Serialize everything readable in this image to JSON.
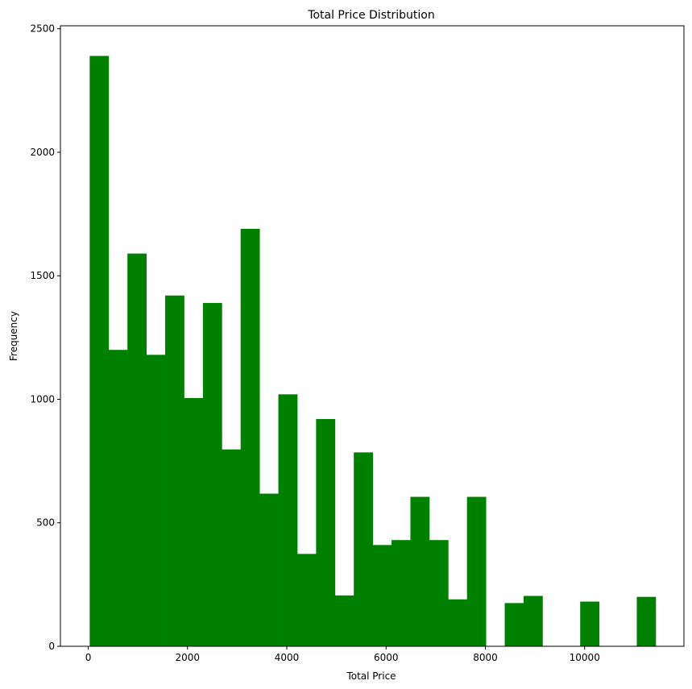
{
  "chart_data": {
    "type": "bar",
    "title": "Total Price Distribution",
    "xlabel": "Total Price",
    "ylabel": "Frequency",
    "xlim": [
      -560,
      12000
    ],
    "ylim": [
      0,
      2512
    ],
    "xticks": [
      0,
      2000,
      4000,
      6000,
      8000,
      10000
    ],
    "yticks": [
      0,
      500,
      1000,
      1500,
      2000,
      2500
    ],
    "bar_color": "#008000",
    "bins": [
      {
        "x0": 30,
        "x1": 410,
        "count": 2390
      },
      {
        "x0": 410,
        "x1": 790,
        "count": 1200
      },
      {
        "x0": 790,
        "x1": 1170,
        "count": 1590
      },
      {
        "x0": 1170,
        "x1": 1550,
        "count": 1180
      },
      {
        "x0": 1550,
        "x1": 1930,
        "count": 1420
      },
      {
        "x0": 1930,
        "x1": 2310,
        "count": 1005
      },
      {
        "x0": 2310,
        "x1": 2690,
        "count": 1390
      },
      {
        "x0": 2690,
        "x1": 3070,
        "count": 797
      },
      {
        "x0": 3070,
        "x1": 3450,
        "count": 1690
      },
      {
        "x0": 3450,
        "x1": 3830,
        "count": 618
      },
      {
        "x0": 3830,
        "x1": 4210,
        "count": 1020
      },
      {
        "x0": 4210,
        "x1": 4590,
        "count": 374
      },
      {
        "x0": 4590,
        "x1": 4970,
        "count": 920
      },
      {
        "x0": 4970,
        "x1": 5350,
        "count": 206
      },
      {
        "x0": 5350,
        "x1": 5730,
        "count": 785
      },
      {
        "x0": 5730,
        "x1": 6110,
        "count": 410
      },
      {
        "x0": 6110,
        "x1": 6490,
        "count": 430
      },
      {
        "x0": 6490,
        "x1": 6870,
        "count": 605
      },
      {
        "x0": 6870,
        "x1": 7250,
        "count": 430
      },
      {
        "x0": 7250,
        "x1": 7630,
        "count": 190
      },
      {
        "x0": 7630,
        "x1": 8010,
        "count": 605
      },
      {
        "x0": 8010,
        "x1": 8390,
        "count": 0
      },
      {
        "x0": 8390,
        "x1": 8770,
        "count": 175
      },
      {
        "x0": 8770,
        "x1": 9150,
        "count": 204
      },
      {
        "x0": 9150,
        "x1": 9530,
        "count": 0
      },
      {
        "x0": 9530,
        "x1": 9910,
        "count": 0
      },
      {
        "x0": 9910,
        "x1": 10290,
        "count": 181
      },
      {
        "x0": 10290,
        "x1": 10670,
        "count": 0
      },
      {
        "x0": 10670,
        "x1": 11050,
        "count": 0
      },
      {
        "x0": 11050,
        "x1": 11430,
        "count": 200
      }
    ]
  }
}
